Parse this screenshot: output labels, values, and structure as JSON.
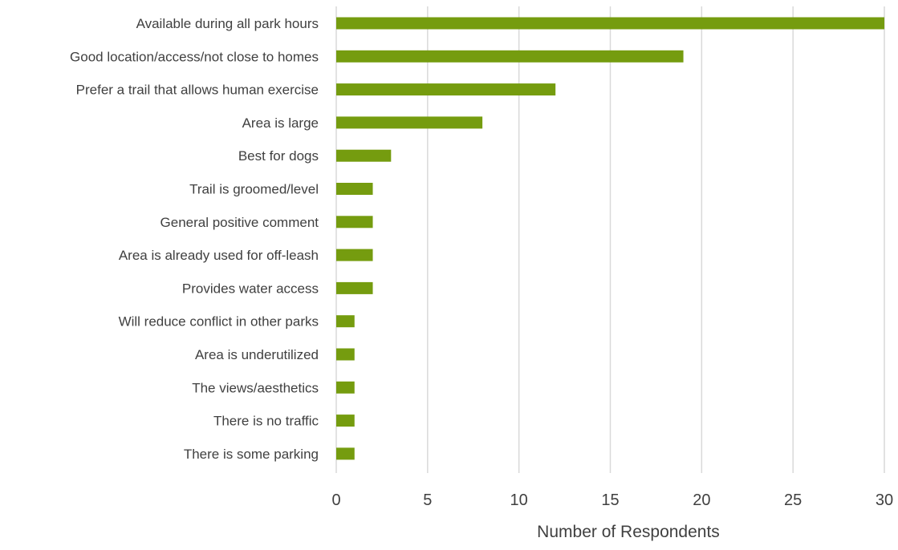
{
  "chart_data": {
    "type": "bar",
    "orientation": "horizontal",
    "title": "",
    "xlabel": "Number of Respondents",
    "ylabel": "",
    "categories": [
      "Available during all park hours",
      "Good location/access/not close to homes",
      "Prefer a trail that allows human exercise",
      "Area is large",
      "Best for dogs",
      "Trail is groomed/level",
      "General positive comment",
      "Area is already used for off-leash",
      "Provides water access",
      "Will reduce conflict in other parks",
      "Area is underutilized",
      "The views/aesthetics",
      "There is no traffic",
      "There is some parking"
    ],
    "values": [
      30,
      19,
      12,
      8,
      3,
      2,
      2,
      2,
      2,
      1,
      1,
      1,
      1,
      1
    ],
    "xlim": [
      0,
      30
    ],
    "xticks": [
      "0",
      "5",
      "10",
      "15",
      "20",
      "25",
      "30"
    ],
    "grid": "vertical",
    "legend": "none",
    "bar_color": "#759c0f",
    "text_color": "#404040",
    "grid_color": "#d9d9d9"
  }
}
